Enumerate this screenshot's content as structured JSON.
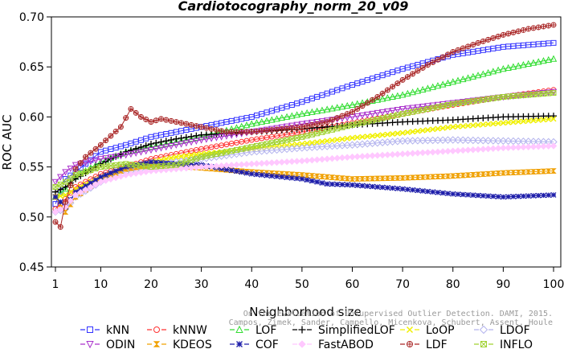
{
  "chart_data": {
    "type": "line",
    "title": "Cardiotocography_norm_20_v09",
    "xlabel": "Neighborhood size",
    "ylabel": "ROC AUC",
    "xlim": [
      1,
      100
    ],
    "ylim": [
      0.45,
      0.7
    ],
    "x_ticks": [
      1,
      10,
      20,
      30,
      40,
      50,
      60,
      70,
      80,
      90,
      100
    ],
    "y_ticks": [
      0.45,
      0.5,
      0.55,
      0.6,
      0.65,
      0.7
    ],
    "x_tick_labels": [
      "1",
      "10",
      "20",
      "30",
      "40",
      "50",
      "60",
      "70",
      "80",
      "90",
      "100"
    ],
    "y_tick_labels": [
      "0.45",
      "0.50",
      "0.55",
      "0.60",
      "0.65",
      "0.70"
    ],
    "grid": false,
    "legend_position": "bottom",
    "series": [
      {
        "name": "kNN",
        "color": "#3232ff",
        "marker": "square",
        "points": [
          [
            1,
            0.513
          ],
          [
            3,
            0.538
          ],
          [
            5,
            0.545
          ],
          [
            10,
            0.565
          ],
          [
            15,
            0.572
          ],
          [
            20,
            0.58
          ],
          [
            25,
            0.585
          ],
          [
            30,
            0.59
          ],
          [
            40,
            0.6
          ],
          [
            50,
            0.615
          ],
          [
            60,
            0.632
          ],
          [
            70,
            0.648
          ],
          [
            80,
            0.662
          ],
          [
            90,
            0.67
          ],
          [
            100,
            0.674
          ]
        ]
      },
      {
        "name": "kNNW",
        "color": "#ff3232",
        "marker": "circle",
        "points": [
          [
            1,
            0.508
          ],
          [
            3,
            0.518
          ],
          [
            5,
            0.53
          ],
          [
            10,
            0.543
          ],
          [
            15,
            0.55
          ],
          [
            20,
            0.558
          ],
          [
            25,
            0.563
          ],
          [
            30,
            0.568
          ],
          [
            40,
            0.577
          ],
          [
            50,
            0.585
          ],
          [
            60,
            0.594
          ],
          [
            70,
            0.603
          ],
          [
            80,
            0.612
          ],
          [
            90,
            0.62
          ],
          [
            100,
            0.627
          ]
        ]
      },
      {
        "name": "LOF",
        "color": "#32dd32",
        "marker": "triangle-up",
        "points": [
          [
            1,
            0.52
          ],
          [
            3,
            0.528
          ],
          [
            5,
            0.54
          ],
          [
            10,
            0.555
          ],
          [
            15,
            0.565
          ],
          [
            20,
            0.57
          ],
          [
            25,
            0.575
          ],
          [
            30,
            0.58
          ],
          [
            40,
            0.593
          ],
          [
            50,
            0.603
          ],
          [
            60,
            0.612
          ],
          [
            70,
            0.622
          ],
          [
            80,
            0.635
          ],
          [
            90,
            0.648
          ],
          [
            100,
            0.658
          ]
        ]
      },
      {
        "name": "SimplifiedLOF",
        "color": "#000000",
        "marker": "plus",
        "points": [
          [
            1,
            0.525
          ],
          [
            3,
            0.53
          ],
          [
            5,
            0.538
          ],
          [
            10,
            0.553
          ],
          [
            15,
            0.565
          ],
          [
            20,
            0.573
          ],
          [
            25,
            0.578
          ],
          [
            30,
            0.582
          ],
          [
            40,
            0.585
          ],
          [
            50,
            0.588
          ],
          [
            60,
            0.592
          ],
          [
            70,
            0.595
          ],
          [
            80,
            0.597
          ],
          [
            90,
            0.6
          ],
          [
            100,
            0.601
          ]
        ]
      },
      {
        "name": "LoOP",
        "color": "#f0f000",
        "marker": "x",
        "points": [
          [
            1,
            0.52
          ],
          [
            3,
            0.522
          ],
          [
            5,
            0.528
          ],
          [
            10,
            0.54
          ],
          [
            15,
            0.548
          ],
          [
            20,
            0.555
          ],
          [
            25,
            0.56
          ],
          [
            30,
            0.563
          ],
          [
            40,
            0.568
          ],
          [
            50,
            0.573
          ],
          [
            60,
            0.579
          ],
          [
            70,
            0.584
          ],
          [
            80,
            0.59
          ],
          [
            90,
            0.594
          ],
          [
            100,
            0.598
          ]
        ]
      },
      {
        "name": "LDOF",
        "color": "#b4b4ee",
        "marker": "diamond",
        "points": [
          [
            1,
            0.505
          ],
          [
            3,
            0.508
          ],
          [
            5,
            0.52
          ],
          [
            10,
            0.535
          ],
          [
            15,
            0.545
          ],
          [
            20,
            0.55
          ],
          [
            25,
            0.555
          ],
          [
            30,
            0.558
          ],
          [
            40,
            0.565
          ],
          [
            50,
            0.569
          ],
          [
            60,
            0.572
          ],
          [
            70,
            0.576
          ],
          [
            80,
            0.577
          ],
          [
            90,
            0.576
          ],
          [
            100,
            0.575
          ]
        ]
      },
      {
        "name": "ODIN",
        "color": "#aa32cc",
        "marker": "triangle-down",
        "points": [
          [
            1,
            0.535
          ],
          [
            3,
            0.545
          ],
          [
            5,
            0.552
          ],
          [
            10,
            0.558
          ],
          [
            15,
            0.562
          ],
          [
            20,
            0.567
          ],
          [
            25,
            0.572
          ],
          [
            30,
            0.577
          ],
          [
            40,
            0.585
          ],
          [
            50,
            0.593
          ],
          [
            60,
            0.6
          ],
          [
            70,
            0.608
          ],
          [
            80,
            0.614
          ],
          [
            90,
            0.62
          ],
          [
            100,
            0.625
          ]
        ]
      },
      {
        "name": "KDEOS",
        "color": "#f0a000",
        "marker": "bowtie",
        "points": [
          [
            1,
            0.52
          ],
          [
            3,
            0.505
          ],
          [
            5,
            0.52
          ],
          [
            10,
            0.538
          ],
          [
            15,
            0.548
          ],
          [
            20,
            0.552
          ],
          [
            25,
            0.551
          ],
          [
            30,
            0.549
          ],
          [
            40,
            0.545
          ],
          [
            50,
            0.542
          ],
          [
            60,
            0.538
          ],
          [
            70,
            0.539
          ],
          [
            80,
            0.541
          ],
          [
            90,
            0.544
          ],
          [
            100,
            0.546
          ]
        ]
      },
      {
        "name": "COF",
        "color": "#1e1eaa",
        "marker": "star",
        "points": [
          [
            1,
            0.52
          ],
          [
            3,
            0.51
          ],
          [
            5,
            0.525
          ],
          [
            10,
            0.54
          ],
          [
            15,
            0.55
          ],
          [
            20,
            0.555
          ],
          [
            25,
            0.553
          ],
          [
            30,
            0.552
          ],
          [
            40,
            0.543
          ],
          [
            50,
            0.538
          ],
          [
            55,
            0.533
          ],
          [
            60,
            0.532
          ],
          [
            70,
            0.528
          ],
          [
            80,
            0.523
          ],
          [
            90,
            0.52
          ],
          [
            100,
            0.522
          ]
        ]
      },
      {
        "name": "FastABOD",
        "color": "#ffc8ff",
        "marker": "diamond-filled",
        "points": [
          [
            1,
            0.505
          ],
          [
            3,
            0.51
          ],
          [
            5,
            0.522
          ],
          [
            10,
            0.535
          ],
          [
            15,
            0.542
          ],
          [
            20,
            0.546
          ],
          [
            25,
            0.548
          ],
          [
            30,
            0.55
          ],
          [
            40,
            0.553
          ],
          [
            50,
            0.556
          ],
          [
            60,
            0.56
          ],
          [
            70,
            0.563
          ],
          [
            80,
            0.566
          ],
          [
            90,
            0.569
          ],
          [
            100,
            0.571
          ]
        ]
      },
      {
        "name": "LDF",
        "color": "#aa2828",
        "marker": "circle-plus",
        "points": [
          [
            1,
            0.495
          ],
          [
            2,
            0.49
          ],
          [
            3,
            0.515
          ],
          [
            5,
            0.548
          ],
          [
            7,
            0.56
          ],
          [
            10,
            0.572
          ],
          [
            14,
            0.59
          ],
          [
            16,
            0.608
          ],
          [
            18,
            0.6
          ],
          [
            20,
            0.595
          ],
          [
            22,
            0.598
          ],
          [
            25,
            0.595
          ],
          [
            30,
            0.59
          ],
          [
            35,
            0.585
          ],
          [
            40,
            0.585
          ],
          [
            50,
            0.59
          ],
          [
            55,
            0.595
          ],
          [
            60,
            0.605
          ],
          [
            65,
            0.62
          ],
          [
            70,
            0.637
          ],
          [
            75,
            0.652
          ],
          [
            80,
            0.665
          ],
          [
            85,
            0.674
          ],
          [
            90,
            0.682
          ],
          [
            95,
            0.688
          ],
          [
            100,
            0.692
          ]
        ]
      },
      {
        "name": "INFLO",
        "color": "#a0d232",
        "marker": "star-box",
        "points": [
          [
            1,
            0.53
          ],
          [
            3,
            0.535
          ],
          [
            5,
            0.542
          ],
          [
            10,
            0.55
          ],
          [
            15,
            0.553
          ],
          [
            20,
            0.55
          ],
          [
            25,
            0.552
          ],
          [
            30,
            0.56
          ],
          [
            40,
            0.57
          ],
          [
            50,
            0.58
          ],
          [
            60,
            0.592
          ],
          [
            70,
            0.603
          ],
          [
            80,
            0.613
          ],
          [
            90,
            0.62
          ],
          [
            100,
            0.624
          ]
        ]
      }
    ]
  },
  "legend_rows": [
    [
      "kNN",
      "kNNW",
      "LOF",
      "SimplifiedLOF",
      "LoOP",
      "LDOF"
    ],
    [
      "ODIN",
      "KDEOS",
      "COF",
      "FastABOD",
      "LDF",
      "INFLO"
    ]
  ],
  "watermark_lines": [
    "On the Evaluation of Unsupervised Outlier Detection. DAMI, 2015.",
    "Campos, Zimek, Sander, Campello, Micenkova, Schubert, Assent, Houle"
  ]
}
